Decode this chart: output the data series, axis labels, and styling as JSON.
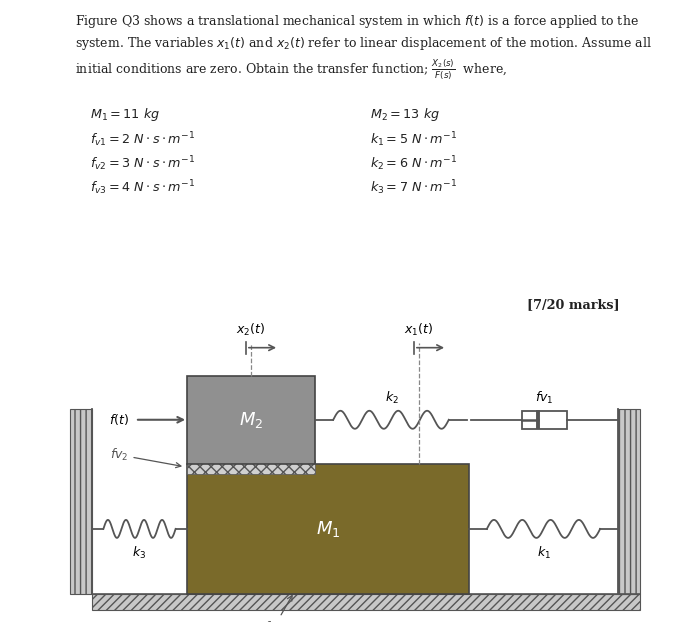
{
  "bg_color": "#ffffff",
  "text_color": "#222222",
  "title_text": "Figure Q3",
  "marks_text": "[7/20 marks]",
  "wall_color": "#c8c8c8",
  "M1_color": "#7a6a2a",
  "M2_color": "#909090",
  "line_color": "#555555"
}
